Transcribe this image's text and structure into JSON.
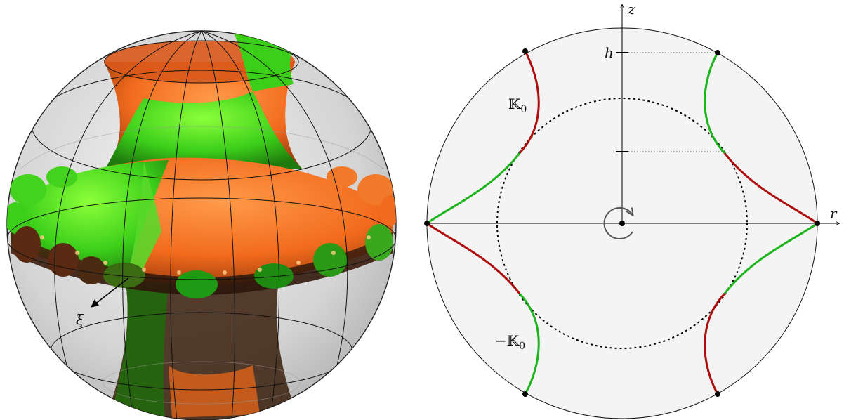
{
  "left_panel": {
    "arrow_label": "ξ"
  },
  "right_panel": {
    "axis_r_label": "r",
    "axis_z_label": "z",
    "tick_h_label": "h",
    "curve_label_top": "𝕂",
    "curve_label_top_sub": "0",
    "curve_label_bottom": "−𝕂",
    "curve_label_bottom_sub": "0"
  },
  "colors": {
    "orange": "#f26b1d",
    "green": "#3ccf1a",
    "dark_red": "#b00d0d",
    "curve_green": "#1bb51b",
    "disk_fill": "#f4f4f4",
    "sphere_gray": "#c9c9c9"
  }
}
